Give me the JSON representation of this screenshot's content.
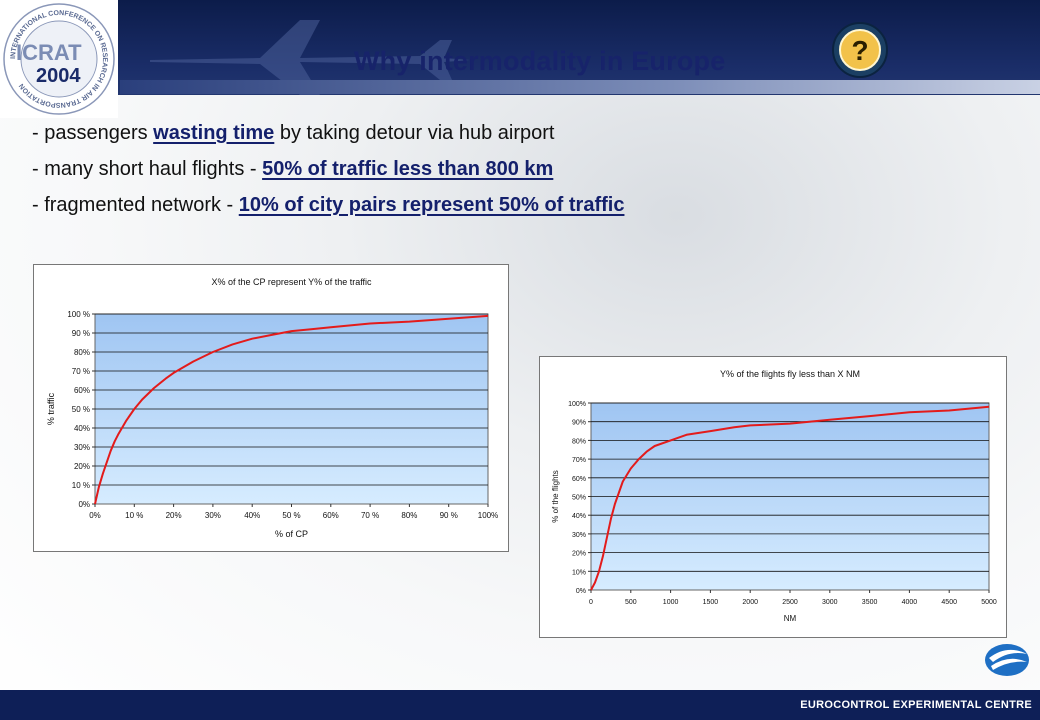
{
  "slide": {
    "title": "Why intermodality in Europe",
    "question_mark": "?",
    "logo": {
      "year": "2004",
      "name": "ICRAT",
      "ring_text": "INTERNATIONAL CONFERENCE ON RESEARCH IN AIR TRANSPORTATION"
    },
    "bullets": [
      {
        "prefix": "- passengers ",
        "highlight": "wasting time",
        "suffix": " by taking detour via hub airport"
      },
      {
        "prefix": "- many short haul flights - ",
        "highlight": "50% of traffic less than 800 km",
        "suffix": ""
      },
      {
        "prefix": "- fragmented network - ",
        "highlight": "10% of city pairs represent 50% of traffic",
        "suffix": ""
      }
    ],
    "footer": "EUROCONTROL EXPERIMENTAL CENTRE",
    "colors": {
      "header": "#12235c",
      "title": "#17236a",
      "curve": "#e31b1b",
      "plot_top": "#9fc5f2",
      "plot_bottom": "#d6ecff"
    }
  },
  "chart_data": [
    {
      "type": "line",
      "title": "X% of the CP represent Y% of the traffic",
      "xlabel": "% of CP",
      "ylabel": "% traffic",
      "xlim": [
        0,
        100
      ],
      "ylim": [
        0,
        100
      ],
      "x_ticks": [
        "0%",
        "10 %",
        "20%",
        "30%",
        "40%",
        "50 %",
        "60%",
        "70 %",
        "80%",
        "90 %",
        "100%"
      ],
      "y_ticks": [
        "0%",
        "10 %",
        "20%",
        "30%",
        "40%",
        "50 %",
        "60%",
        "70 %",
        "80%",
        "90 %",
        "100 %"
      ],
      "grid": true,
      "series": [
        {
          "x": [
            0,
            1,
            2,
            3,
            4,
            5,
            6,
            8,
            10,
            12,
            15,
            18,
            20,
            25,
            30,
            35,
            40,
            45,
            50,
            55,
            60,
            70,
            80,
            90,
            100
          ],
          "y": [
            0,
            9,
            16,
            22,
            28,
            33,
            37,
            44,
            50,
            55,
            61,
            66,
            69,
            75,
            80,
            84,
            87,
            89,
            91,
            92,
            93,
            95,
            96,
            97.5,
            99
          ]
        }
      ]
    },
    {
      "type": "line",
      "title": "Y% of the flights fly less than X NM",
      "xlabel": "NM",
      "ylabel": "% of the flights",
      "xlim": [
        0,
        5000
      ],
      "ylim": [
        0,
        100
      ],
      "x_ticks": [
        "0",
        "500",
        "1000",
        "1500",
        "2000",
        "2500",
        "3000",
        "3500",
        "4000",
        "4500",
        "5000"
      ],
      "y_ticks": [
        "0%",
        "10%",
        "20%",
        "30%",
        "40%",
        "50%",
        "60%",
        "70%",
        "80%",
        "90%",
        "100%"
      ],
      "grid": true,
      "series": [
        {
          "x": [
            0,
            50,
            100,
            150,
            200,
            250,
            300,
            400,
            500,
            600,
            700,
            800,
            1000,
            1200,
            1500,
            1800,
            2000,
            2500,
            3000,
            3500,
            4000,
            4500,
            5000
          ],
          "y": [
            0,
            4,
            10,
            18,
            28,
            38,
            46,
            58,
            65,
            70,
            74,
            77,
            80,
            83,
            85,
            87,
            88,
            89,
            91,
            93,
            95,
            96,
            98
          ]
        }
      ]
    }
  ]
}
